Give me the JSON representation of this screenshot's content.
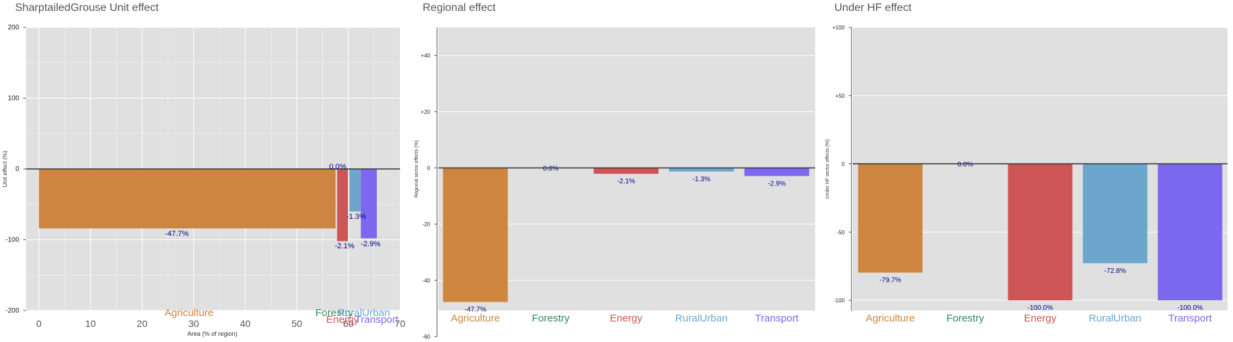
{
  "colors": {
    "Agriculture": "#CD853F",
    "Forestry": "#2E8B57",
    "Energy": "#CD5555",
    "RuralUrban": "#6CA6CD",
    "Transport": "#7B68EE",
    "panel_bg": "#E0E0E0",
    "label_text": "#00008B",
    "zero_line": "#333333"
  },
  "chart_data": [
    {
      "id": "unit",
      "type": "bar",
      "title": "SharptailedGrouse Unit effect",
      "xlabel": "Area (% of region)",
      "ylabel": "Unit effect (%)",
      "xlim": [
        -2.5,
        70
      ],
      "ylim": [
        -200,
        200
      ],
      "xticks": [
        0,
        10,
        20,
        30,
        40,
        50,
        60,
        70
      ],
      "yticks": [
        -200,
        -100,
        0,
        100,
        200
      ],
      "yticklabels": [
        "-200",
        "-100",
        "0",
        "100",
        "200"
      ],
      "grid": true,
      "bars": [
        {
          "sector": "Agriculture",
          "x0": 0,
          "x1": 57.5,
          "value": -84,
          "label": "-47.7%"
        },
        {
          "sector": "Forestry",
          "x0": 57.6,
          "x1": 57.8,
          "value": 0,
          "label": "0.0%"
        },
        {
          "sector": "Energy",
          "x0": 57.8,
          "x1": 59.9,
          "value": -102,
          "label": "-2.1%"
        },
        {
          "sector": "RuralUrban",
          "x0": 60.2,
          "x1": 62.4,
          "value": -60,
          "label": "-1.3%"
        },
        {
          "sector": "Transport",
          "x0": 62.4,
          "x1": 65.5,
          "value": -98,
          "label": "-2.9%"
        }
      ],
      "sector_labels": [
        {
          "text": "Agriculture",
          "sector": "Agriculture"
        },
        {
          "text": "Forestry",
          "sector": "Forestry"
        },
        {
          "text": "Energy",
          "sector": "Energy"
        },
        {
          "text": "RuralUrban",
          "sector": "RuralUrban"
        },
        {
          "text": "Transport",
          "sector": "Transport"
        }
      ]
    },
    {
      "id": "regional",
      "type": "bar",
      "title": "Regional effect",
      "xlabel": "",
      "ylabel": "Regional sector effects (%)",
      "ylim": [
        -60,
        50
      ],
      "yticks": [
        -60,
        -40,
        -20,
        0,
        20,
        40
      ],
      "yticklabels": [
        "-60",
        "-40",
        "-20",
        "0",
        "+20",
        "+40"
      ],
      "grid": true,
      "categories": [
        "Agriculture",
        "Forestry",
        "Energy",
        "RuralUrban",
        "Transport"
      ],
      "values": [
        -47.7,
        0.0,
        -2.1,
        -1.3,
        -2.9
      ],
      "labels": [
        "-47.7%",
        "0.0%",
        "-2.1%",
        "-1.3%",
        "-2.9%"
      ]
    },
    {
      "id": "underhf",
      "type": "bar",
      "title": "Under HF effect",
      "xlabel": "",
      "ylabel": "Under HF sector effects (%)",
      "ylim": [
        -108,
        100
      ],
      "yticks": [
        -100,
        -50,
        0,
        50,
        100
      ],
      "yticklabels": [
        "-100",
        "-50",
        "0",
        "+50",
        "+100"
      ],
      "grid": true,
      "categories": [
        "Agriculture",
        "Forestry",
        "Energy",
        "RuralUrban",
        "Transport"
      ],
      "values": [
        -79.7,
        0.0,
        -100.0,
        -72.8,
        -100.0
      ],
      "labels": [
        "-79.7%",
        "0.0%",
        "-100.0%",
        "-72.8%",
        "-100.0%"
      ]
    }
  ]
}
